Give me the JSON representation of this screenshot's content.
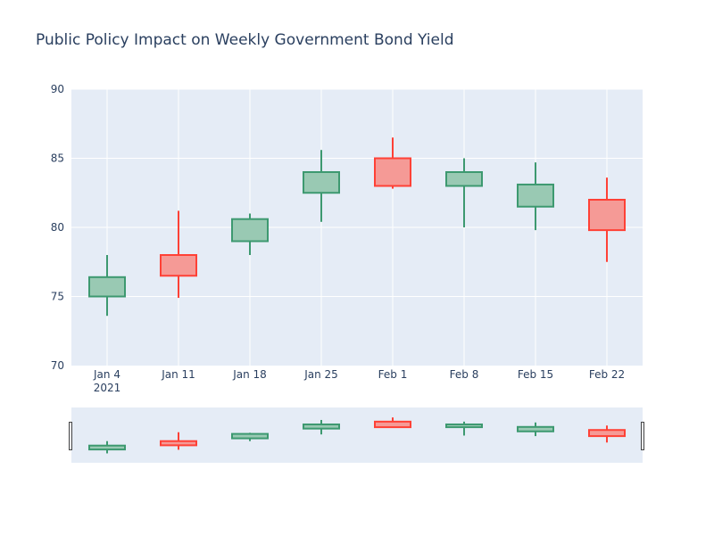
{
  "chart_data": {
    "type": "candlestick",
    "title": "Public Policy Impact on Weekly Government Bond Yield",
    "xlabel": "",
    "ylabel": "",
    "ylim": [
      70,
      90
    ],
    "yticks": [
      70,
      75,
      80,
      85,
      90
    ],
    "x_tick_labels": [
      "Jan 4",
      "Jan 11",
      "Jan 18",
      "Jan 25",
      "Feb 1",
      "Feb 8",
      "Feb 15",
      "Feb 22"
    ],
    "x_tick_sublabel": "2021",
    "grid": true,
    "rangeslider": true,
    "colors": {
      "increasing": "#3d9970",
      "increasing_fill": "#99c9b3",
      "decreasing": "#ff4136",
      "decreasing_fill": "#f59a96",
      "plot_bg": "#e5ecf6",
      "text": "#2a3f5f"
    },
    "candles": [
      {
        "date": "2021-01-04",
        "open": 75.0,
        "high": 78.0,
        "low": 73.6,
        "close": 76.4
      },
      {
        "date": "2021-01-11",
        "open": 78.0,
        "high": 81.2,
        "low": 74.9,
        "close": 76.5
      },
      {
        "date": "2021-01-18",
        "open": 79.0,
        "high": 81.0,
        "low": 78.0,
        "close": 80.6
      },
      {
        "date": "2021-01-25",
        "open": 82.5,
        "high": 85.6,
        "low": 80.4,
        "close": 84.0
      },
      {
        "date": "2021-02-01",
        "open": 85.0,
        "high": 86.5,
        "low": 82.8,
        "close": 83.0
      },
      {
        "date": "2021-02-08",
        "open": 83.0,
        "high": 85.0,
        "low": 80.0,
        "close": 84.0
      },
      {
        "date": "2021-02-15",
        "open": 81.5,
        "high": 84.7,
        "low": 79.8,
        "close": 83.1
      },
      {
        "date": "2021-02-22",
        "open": 82.0,
        "high": 83.6,
        "low": 77.5,
        "close": 79.8
      }
    ]
  }
}
